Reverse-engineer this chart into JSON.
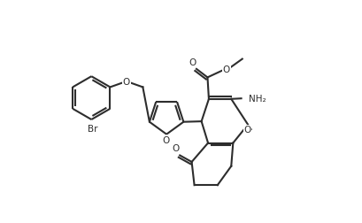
{
  "background_color": "#ffffff",
  "line_color": "#2d2d2d",
  "line_width": 1.5,
  "figsize": [
    4.09,
    2.53
  ],
  "dpi": 100,
  "xlim": [
    0,
    10.2
  ],
  "ylim": [
    0,
    8.5
  ]
}
